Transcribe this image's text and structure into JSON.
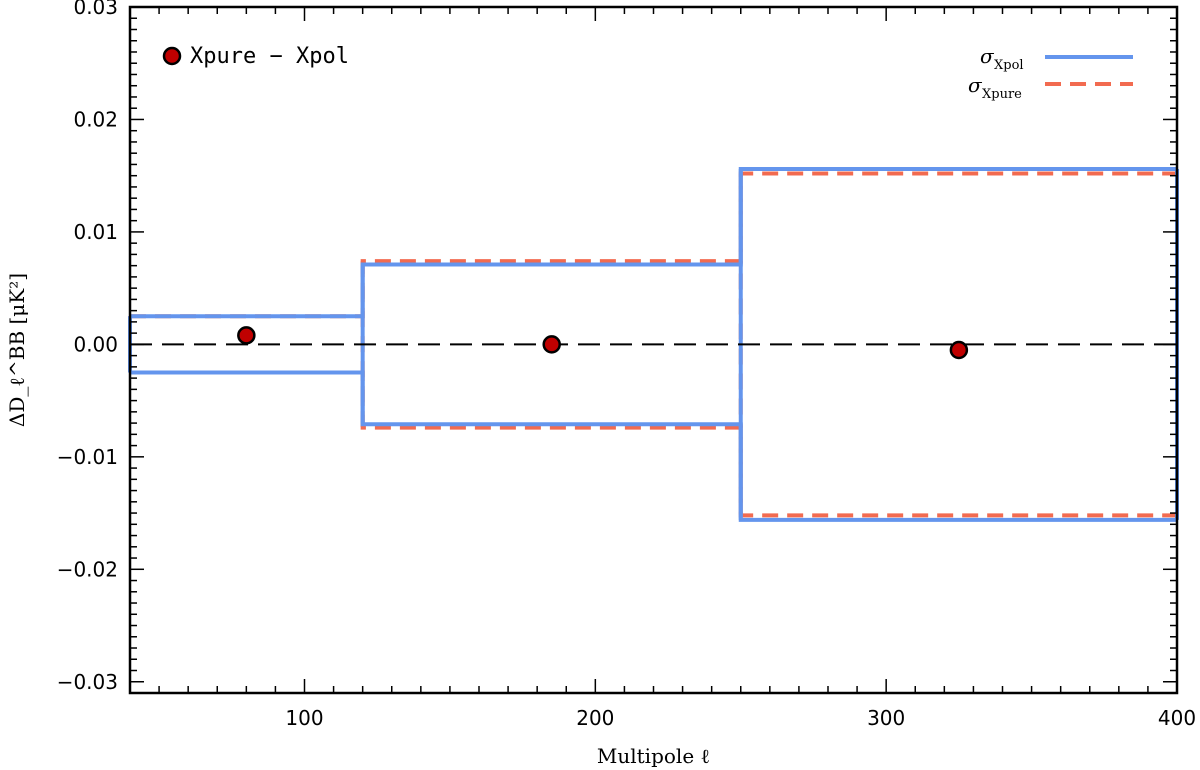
{
  "chart_data": {
    "type": "line",
    "x_label": "Multipole ℓ",
    "y_label": "ΔD_ℓ^BB [μK²]",
    "x_range": [
      40,
      400
    ],
    "y_range": [
      -0.031,
      0.03
    ],
    "x_ticks": [
      100,
      200,
      300,
      400
    ],
    "x_tick_labels": [
      "100",
      "200",
      "300",
      "400"
    ],
    "y_ticks": [
      -0.03,
      -0.02,
      -0.01,
      0.0,
      0.01,
      0.02,
      0.03
    ],
    "y_tick_labels": [
      "−0.03",
      "−0.02",
      "−0.01",
      "0.00",
      "0.01",
      "0.02",
      "0.03"
    ],
    "zero_line": {
      "y": 0.0,
      "style": "dashed",
      "color": "#000000"
    },
    "bins": [
      {
        "lo": 40,
        "hi": 120
      },
      {
        "lo": 120,
        "hi": 250
      },
      {
        "lo": 250,
        "hi": 400
      }
    ],
    "series": [
      {
        "name": "Xpure − Xpol",
        "kind": "scatter",
        "color": "#c00000",
        "x": [
          80,
          185,
          325
        ],
        "y": [
          0.0008,
          0.0,
          -0.0005
        ]
      },
      {
        "name": "σ_Xpol",
        "kind": "step-envelope",
        "style": "solid",
        "color": "#6495ed",
        "values": [
          0.0025,
          0.0071,
          0.0156
        ]
      },
      {
        "name": "σ_Xpure",
        "kind": "step-envelope",
        "style": "dashed",
        "color": "#f26b50",
        "values": [
          0.0025,
          0.0074,
          0.0152
        ]
      }
    ],
    "legend": {
      "points_label": "Xpure − Xpol",
      "sigma_symbol": "σ",
      "sigma_xpol_sub": "Xpol",
      "sigma_xpure_sub": "Xpure"
    }
  }
}
